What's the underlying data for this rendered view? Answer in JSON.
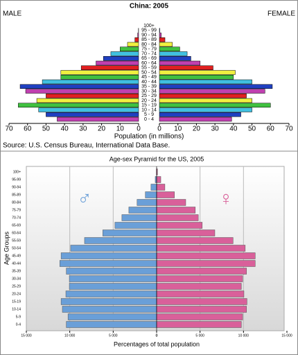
{
  "chart_data": [
    {
      "type": "pyramid",
      "title": "China: 2005",
      "xlabel": "Population (in millions)",
      "source": "Source: U.S. Census Bureau, International Data Base.",
      "categories": [
        "0 - 4",
        "5 - 9",
        "10 - 14",
        "15 - 19",
        "20 - 24",
        "25 - 29",
        "30 - 34",
        "35 - 39",
        "40 - 44",
        "45 - 49",
        "50 - 54",
        "55 - 59",
        "60 - 64",
        "65 - 69",
        "70 - 74",
        "75 - 79",
        "80 - 84",
        "85 - 89",
        "90 - 94",
        "95 - 99",
        "100+"
      ],
      "colors": [
        "#c040b0",
        "#2040c0",
        "#40c0e0",
        "#40c040",
        "#f0f040",
        "#e02020",
        "#c040b0",
        "#2040c0",
        "#40c0e0",
        "#40c040",
        "#f0f040",
        "#e02020",
        "#c040b0",
        "#2040c0",
        "#40c0e0",
        "#40c040",
        "#f0f040",
        "#e02020",
        "#c040b0",
        "#2040c0",
        "#40c0e0"
      ],
      "series": [
        {
          "name": "MALE",
          "values": [
            44,
            50,
            54,
            65,
            55,
            50,
            61,
            64,
            52,
            42,
            42,
            31,
            23,
            19,
            15,
            10,
            6,
            2,
            0.5,
            0.1,
            0
          ]
        },
        {
          "name": "FEMALE",
          "values": [
            39,
            44,
            50,
            60,
            50,
            47,
            57,
            61,
            50,
            40,
            41,
            29,
            22,
            17,
            15,
            11,
            7,
            3,
            1,
            0.2,
            0
          ]
        }
      ],
      "xlim": [
        0,
        70
      ],
      "xticks": [
        0,
        10,
        20,
        30,
        40,
        50,
        60,
        70
      ]
    },
    {
      "type": "pyramid",
      "title": "Age-sex Pyramid for the US, 2005",
      "xlabel": "Percentages of total population",
      "ylabel": "Age Groups",
      "categories": [
        "0-4",
        "5-9",
        "10-14",
        "15-19",
        "20-24",
        "25-29",
        "30-34",
        "35-39",
        "40-44",
        "45-49",
        "50-54",
        "55-59",
        "60-64",
        "65-69",
        "70-74",
        "75-79",
        "80-84",
        "85-89",
        "90-94",
        "95-99",
        "100+"
      ],
      "series": [
        {
          "name": "♂",
          "color": "#6a9fd8",
          "values": [
            10400,
            10200,
            10850,
            11000,
            10450,
            10050,
            10050,
            10400,
            11150,
            11000,
            9900,
            8300,
            6200,
            4800,
            4000,
            3200,
            2250,
            1300,
            650,
            160,
            30
          ]
        },
        {
          "name": "♀",
          "color": "#d9609a",
          "values": [
            9750,
            9900,
            10350,
            10400,
            10050,
            9750,
            9900,
            10350,
            11350,
            11350,
            10200,
            8800,
            6700,
            5250,
            4800,
            4450,
            3350,
            2050,
            950,
            480,
            100
          ]
        }
      ],
      "xlim": [
        0,
        15000
      ],
      "xticks": [
        0,
        {
          "value": 5000,
          "label": "5 000"
        },
        {
          "value": 10000,
          "label": "10 000"
        },
        {
          "value": 15000,
          "label": "15 000"
        }
      ],
      "grid": true
    }
  ]
}
